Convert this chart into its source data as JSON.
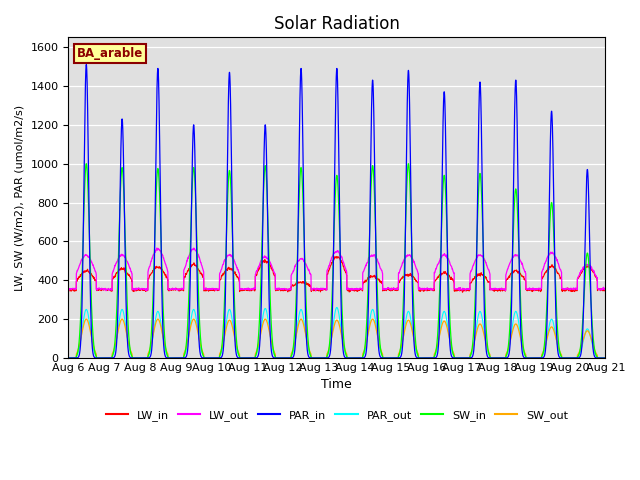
{
  "title": "Solar Radiation",
  "xlabel": "Time",
  "ylabel": "LW, SW (W/m2), PAR (umol/m2/s)",
  "legend_label": "BA_arable",
  "ylim": [
    0,
    1650
  ],
  "yticks": [
    0,
    200,
    400,
    600,
    800,
    1000,
    1200,
    1400,
    1600
  ],
  "date_labels": [
    "Aug 6",
    "Aug 7",
    "Aug 8",
    "Aug 9",
    "Aug 10",
    "Aug 11",
    "Aug 12",
    "Aug 13",
    "Aug 14",
    "Aug 15",
    "Aug 16",
    "Aug 17",
    "Aug 18",
    "Aug 19",
    "Aug 20",
    "Aug 21"
  ],
  "series_colors": {
    "LW_in": "#ff0000",
    "LW_out": "#ff00ff",
    "PAR_in": "#0000ff",
    "PAR_out": "#00ffff",
    "SW_in": "#00ff00",
    "SW_out": "#ffaa00"
  },
  "background_color": "#e0e0e0",
  "n_days": 15,
  "pts_per_day": 480,
  "par_in_peaks": [
    1510,
    1230,
    1490,
    1200,
    1470,
    1200,
    1490,
    1490,
    1430,
    1480,
    1370,
    1420,
    1430,
    1270,
    970
  ],
  "sw_in_peaks": [
    1000,
    980,
    975,
    980,
    965,
    990,
    980,
    940,
    990,
    1000,
    940,
    950,
    870,
    800,
    540
  ],
  "lw_in_day_peaks": [
    450,
    460,
    470,
    480,
    460,
    500,
    390,
    520,
    420,
    430,
    440,
    430,
    450,
    470,
    470
  ],
  "lw_out_day_peaks": [
    530,
    530,
    560,
    560,
    530,
    520,
    510,
    550,
    530,
    530,
    530,
    530,
    530,
    540,
    480
  ],
  "par_out_peaks": [
    250,
    250,
    240,
    250,
    250,
    255,
    250,
    260,
    250,
    240,
    240,
    240,
    240,
    200,
    150
  ],
  "sw_out_peaks": [
    200,
    200,
    200,
    200,
    195,
    200,
    200,
    195,
    200,
    195,
    190,
    175,
    175,
    160,
    140
  ],
  "lw_in_base": 350,
  "lw_out_base": 355,
  "day_start": 0.22,
  "day_end": 0.78
}
